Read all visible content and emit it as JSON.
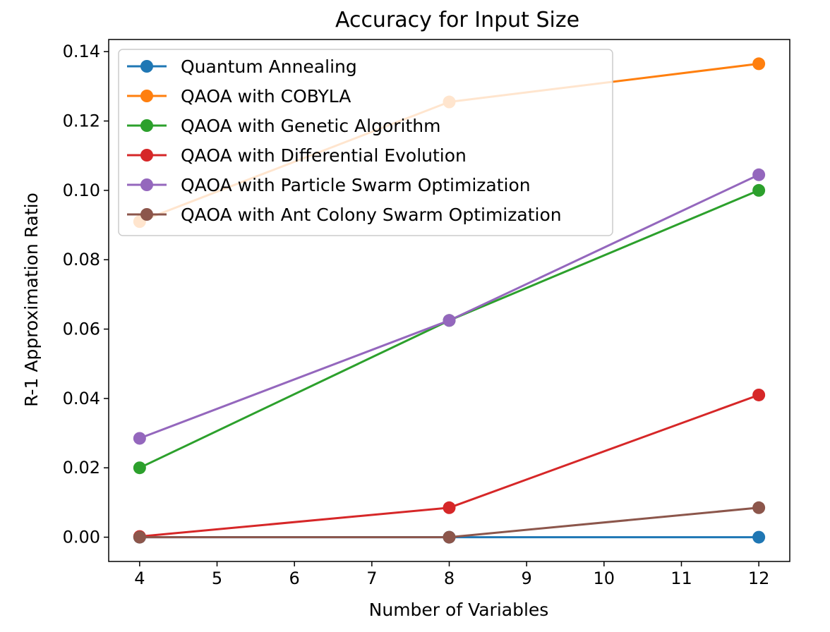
{
  "chart_data": {
    "type": "line",
    "title": "Accuracy for Input Size",
    "xlabel": "Number of Variables",
    "ylabel": "R-1 Approximation Ratio",
    "xlim": [
      3.6,
      12.4
    ],
    "ylim": [
      -0.007,
      0.1435
    ],
    "xticks": [
      4,
      5,
      6,
      7,
      8,
      9,
      10,
      11,
      12
    ],
    "xtick_labels": [
      "4",
      "5",
      "6",
      "7",
      "8",
      "9",
      "10",
      "11",
      "12"
    ],
    "yticks": [
      0.0,
      0.02,
      0.04,
      0.06,
      0.08,
      0.1,
      0.12,
      0.14
    ],
    "ytick_labels": [
      "0.00",
      "0.02",
      "0.04",
      "0.06",
      "0.08",
      "0.10",
      "0.12",
      "0.14"
    ],
    "x": [
      4,
      8,
      12
    ],
    "legend_position": "upper-left",
    "grid": false,
    "series": [
      {
        "name": "Quantum Annealing",
        "color": "#1f77b4",
        "values": [
          0.0,
          0.0,
          0.0
        ]
      },
      {
        "name": "QAOA with COBYLA",
        "color": "#ff7f0e",
        "values": [
          0.091,
          0.1255,
          0.1365
        ]
      },
      {
        "name": "QAOA with Genetic Algorithm",
        "color": "#2ca02c",
        "values": [
          0.02,
          0.0625,
          0.1
        ]
      },
      {
        "name": "QAOA with Differential Evolution",
        "color": "#d62728",
        "values": [
          0.0002,
          0.0085,
          0.041
        ]
      },
      {
        "name": "QAOA with Particle Swarm Optimization",
        "color": "#9467bd",
        "values": [
          0.0285,
          0.0625,
          0.1045
        ]
      },
      {
        "name": "QAOA with Ant Colony Swarm Optimization",
        "color": "#8c564b",
        "values": [
          0.0,
          0.0,
          0.0085
        ]
      }
    ]
  }
}
